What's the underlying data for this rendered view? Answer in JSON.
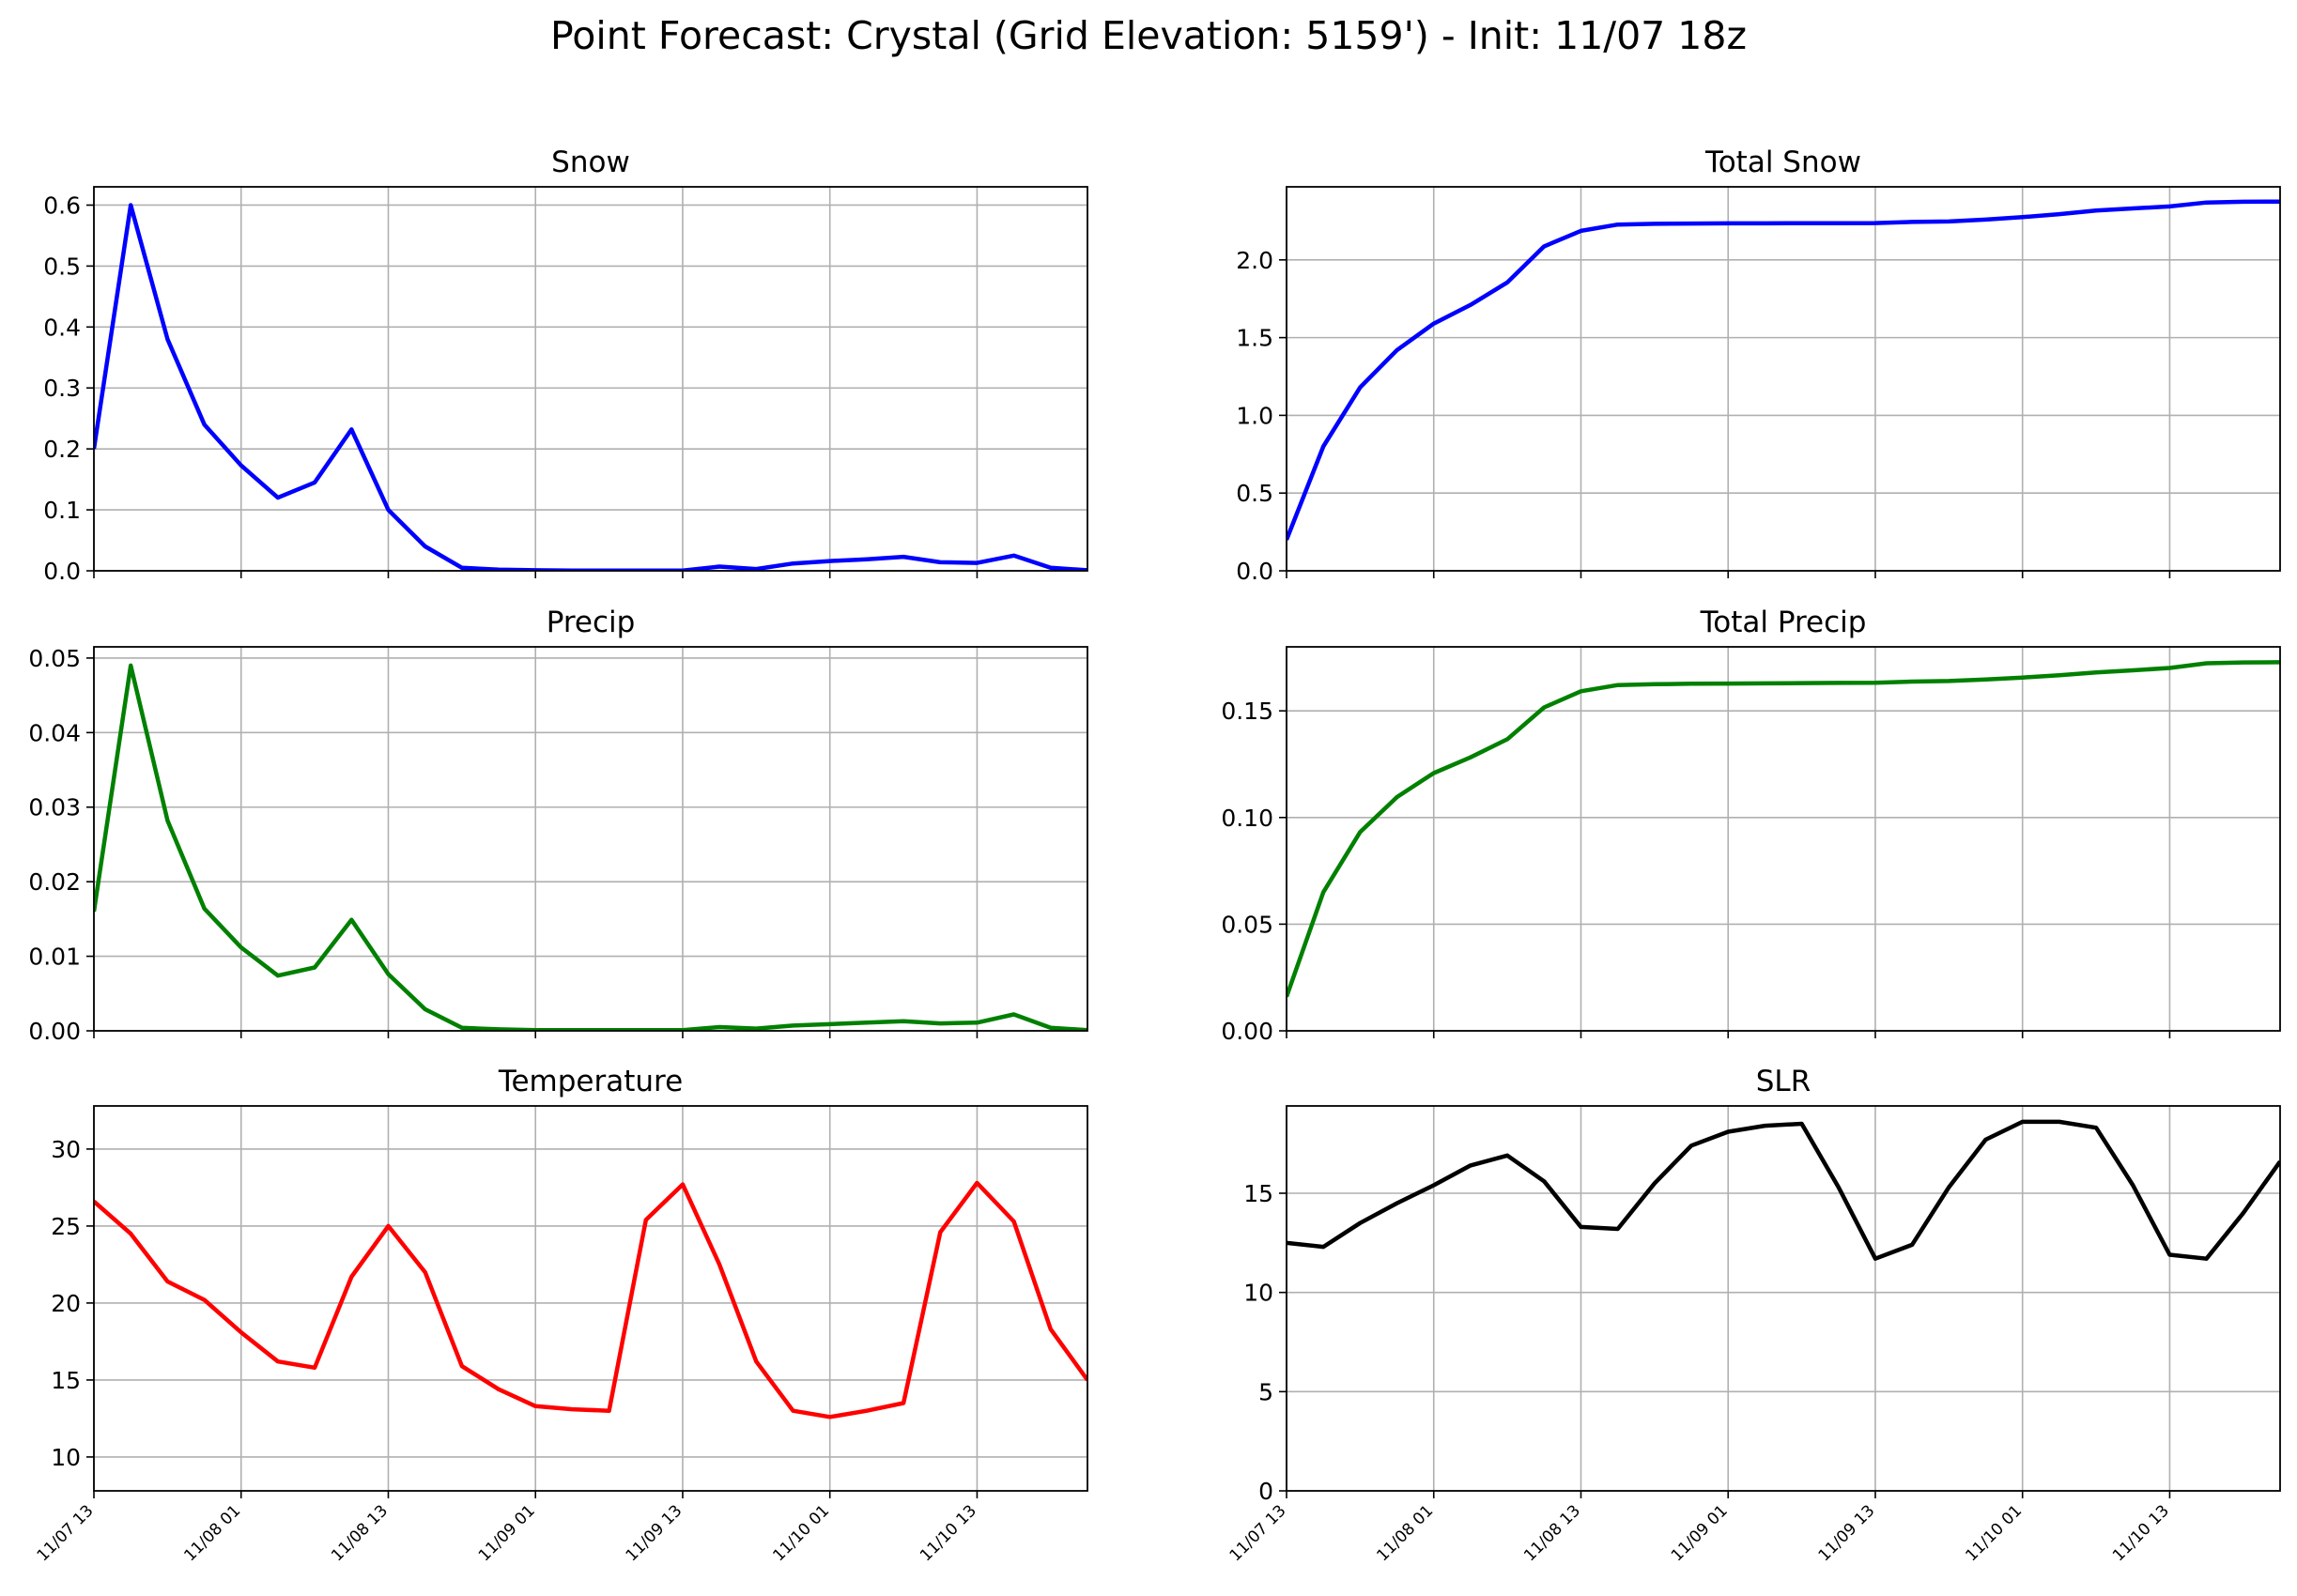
{
  "title": "Point Forecast: Crystal (Grid Elevation: 5159') - Init: 11/07 18z",
  "chart_data": [
    {
      "type": "line",
      "title": "Snow",
      "color": "#0000ff",
      "x_start": "11/07 13",
      "x_step_hours": 3,
      "xticks": [
        "11/07 13",
        "11/08 01",
        "11/08 13",
        "11/09 01",
        "11/09 13",
        "11/10 01",
        "11/10 13"
      ],
      "ylim": [
        0,
        0.63
      ],
      "yticks": [
        "0.0",
        "0.1",
        "0.2",
        "0.3",
        "0.4",
        "0.5",
        "0.6"
      ],
      "ytick_values": [
        0,
        0.1,
        0.2,
        0.3,
        0.4,
        0.5,
        0.6
      ],
      "values": [
        0.2,
        0.6,
        0.38,
        0.24,
        0.173,
        0.12,
        0.145,
        0.232,
        0.1,
        0.04,
        0.005,
        0.002,
        0.001,
        0.0005,
        0.0005,
        0.0005,
        0.0005,
        0.007,
        0.003,
        0.012,
        0.016,
        0.019,
        0.023,
        0.014,
        0.013,
        0.025,
        0.005,
        0.001
      ]
    },
    {
      "type": "line",
      "title": "Total Snow",
      "color": "#0000ff",
      "x_start": "11/07 13",
      "x_step_hours": 3,
      "xticks": [
        "11/07 13",
        "11/08 01",
        "11/08 13",
        "11/09 01",
        "11/09 13",
        "11/10 01",
        "11/10 13"
      ],
      "ylim": [
        0,
        2.47
      ],
      "yticks": [
        "0.0",
        "0.5",
        "1.0",
        "1.5",
        "2.0"
      ],
      "ytick_values": [
        0,
        0.5,
        1.0,
        1.5,
        2.0
      ],
      "values": [
        0.2,
        0.8,
        1.18,
        1.42,
        1.59,
        1.71,
        1.855,
        2.087,
        2.187,
        2.227,
        2.232,
        2.234,
        2.235,
        2.235,
        2.236,
        2.236,
        2.237,
        2.244,
        2.247,
        2.259,
        2.275,
        2.294,
        2.317,
        2.331,
        2.344,
        2.369,
        2.374,
        2.375
      ]
    },
    {
      "type": "line",
      "title": "Precip",
      "color": "#008000",
      "x_start": "11/07 13",
      "x_step_hours": 3,
      "xticks": [
        "11/07 13",
        "11/08 01",
        "11/08 13",
        "11/09 01",
        "11/09 13",
        "11/10 01",
        "11/10 13"
      ],
      "ylim": [
        0,
        0.0515
      ],
      "yticks": [
        "0.00",
        "0.01",
        "0.02",
        "0.03",
        "0.04",
        "0.05"
      ],
      "ytick_values": [
        0,
        0.01,
        0.02,
        0.03,
        0.04,
        0.05
      ],
      "values": [
        0.016,
        0.049,
        0.0282,
        0.0164,
        0.0112,
        0.0074,
        0.0085,
        0.0149,
        0.0076,
        0.0029,
        0.0004,
        0.0002,
        0.0001,
        0.0001,
        0.0001,
        0.0001,
        0.0001,
        0.0005,
        0.0003,
        0.0007,
        0.0009,
        0.0011,
        0.0013,
        0.001,
        0.0011,
        0.0022,
        0.0004,
        0.0001
      ]
    },
    {
      "type": "line",
      "title": "Total Precip",
      "color": "#008000",
      "x_start": "11/07 13",
      "x_step_hours": 3,
      "xticks": [
        "11/07 13",
        "11/08 01",
        "11/08 13",
        "11/09 01",
        "11/09 13",
        "11/10 01",
        "11/10 13"
      ],
      "ylim": [
        0,
        0.18
      ],
      "yticks": [
        "0.00",
        "0.05",
        "0.10",
        "0.15"
      ],
      "ytick_values": [
        0,
        0.05,
        0.1,
        0.15
      ],
      "values": [
        0.016,
        0.065,
        0.0932,
        0.1096,
        0.1208,
        0.1282,
        0.1367,
        0.1516,
        0.1592,
        0.1621,
        0.1625,
        0.1627,
        0.1628,
        0.1629,
        0.163,
        0.1631,
        0.1632,
        0.1637,
        0.164,
        0.1647,
        0.1656,
        0.1667,
        0.168,
        0.169,
        0.1701,
        0.1723,
        0.1727,
        0.1728
      ]
    },
    {
      "type": "line",
      "title": "Temperature",
      "color": "#ff0000",
      "x_start": "11/07 13",
      "x_step_hours": 3,
      "xticks": [
        "11/07 13",
        "11/08 01",
        "11/08 13",
        "11/09 01",
        "11/09 13",
        "11/10 01",
        "11/10 13"
      ],
      "ylim": [
        7.8,
        32.8
      ],
      "yticks": [
        "10",
        "15",
        "20",
        "25",
        "30"
      ],
      "ytick_values": [
        10,
        15,
        20,
        25,
        30
      ],
      "values": [
        26.6,
        24.5,
        21.4,
        20.2,
        18.1,
        16.2,
        15.8,
        21.7,
        25.0,
        22.0,
        15.9,
        14.4,
        13.3,
        13.1,
        13.0,
        25.4,
        27.7,
        22.5,
        16.2,
        13.0,
        12.6,
        13.0,
        13.5,
        24.6,
        27.8,
        25.3,
        18.3,
        15.0
      ]
    },
    {
      "type": "line",
      "title": "SLR",
      "color": "#000000",
      "x_start": "11/07 13",
      "x_step_hours": 3,
      "xticks": [
        "11/07 13",
        "11/08 01",
        "11/08 13",
        "11/09 01",
        "11/09 13",
        "11/10 01",
        "11/10 13"
      ],
      "ylim": [
        0,
        19.4
      ],
      "yticks": [
        "0",
        "5",
        "10",
        "15"
      ],
      "ytick_values": [
        0,
        5,
        10,
        15
      ],
      "values": [
        12.5,
        12.3,
        13.5,
        14.5,
        15.4,
        16.4,
        16.9,
        15.6,
        13.3,
        13.2,
        15.5,
        17.4,
        18.1,
        18.4,
        18.5,
        15.3,
        11.7,
        12.4,
        15.3,
        17.7,
        18.6,
        18.6,
        18.3,
        15.4,
        11.9,
        11.7,
        14.0,
        16.6
      ]
    }
  ]
}
